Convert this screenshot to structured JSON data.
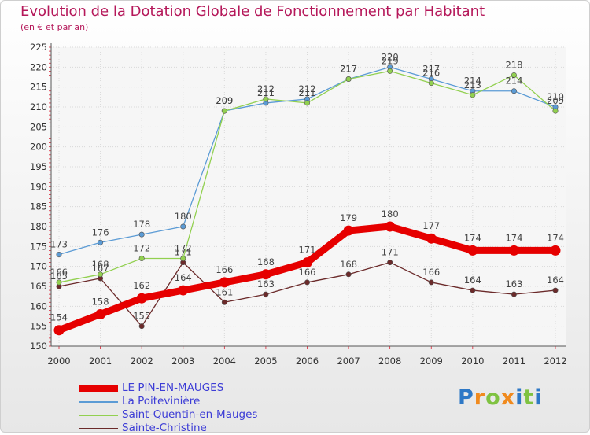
{
  "title": "Evolution de la Dotation Globale de Fonctionnement par Habitant",
  "subtitle": "(en € et par an)",
  "logo": {
    "text": "Proxiti",
    "colors": [
      "#2e78c6",
      "#f08a1e",
      "#7fc241",
      "#f08a1e",
      "#2e78c6",
      "#7fc241",
      "#2e78c6"
    ]
  },
  "chart_data": {
    "type": "line",
    "title": "Evolution de la Dotation Globale de Fonctionnement par Habitant",
    "subtitle": "(en € et par an)",
    "x": [
      "2000",
      "2001",
      "2002",
      "2003",
      "2004",
      "2005",
      "2006",
      "2007",
      "2008",
      "2009",
      "2010",
      "2011",
      "2012"
    ],
    "ylim": [
      150,
      225
    ],
    "yticks": [
      150,
      155,
      160,
      165,
      170,
      175,
      180,
      185,
      190,
      195,
      200,
      205,
      210,
      215,
      220,
      225
    ],
    "grid": true,
    "legend_position": "bottom-left",
    "series": [
      {
        "name": "LE PIN-EN-MAUGES",
        "color": "#e60000",
        "values": [
          154,
          158,
          162,
          164,
          166,
          168,
          171,
          179,
          180,
          177,
          174,
          174,
          174
        ]
      },
      {
        "name": "La Poitevinière",
        "color": "#5b9bd5",
        "values": [
          173,
          176,
          178,
          180,
          209,
          211,
          212,
          217,
          220,
          217,
          214,
          214,
          210
        ]
      },
      {
        "name": "Saint-Quentin-en-Mauges",
        "color": "#92d050",
        "values": [
          166,
          168,
          172,
          172,
          209,
          212,
          211,
          217,
          219,
          216,
          213,
          218,
          209
        ]
      },
      {
        "name": "Sainte-Christine",
        "color": "#6b2a2a",
        "values": [
          165,
          167,
          155,
          171,
          161,
          163,
          166,
          168,
          171,
          166,
          164,
          163,
          164
        ]
      }
    ]
  }
}
